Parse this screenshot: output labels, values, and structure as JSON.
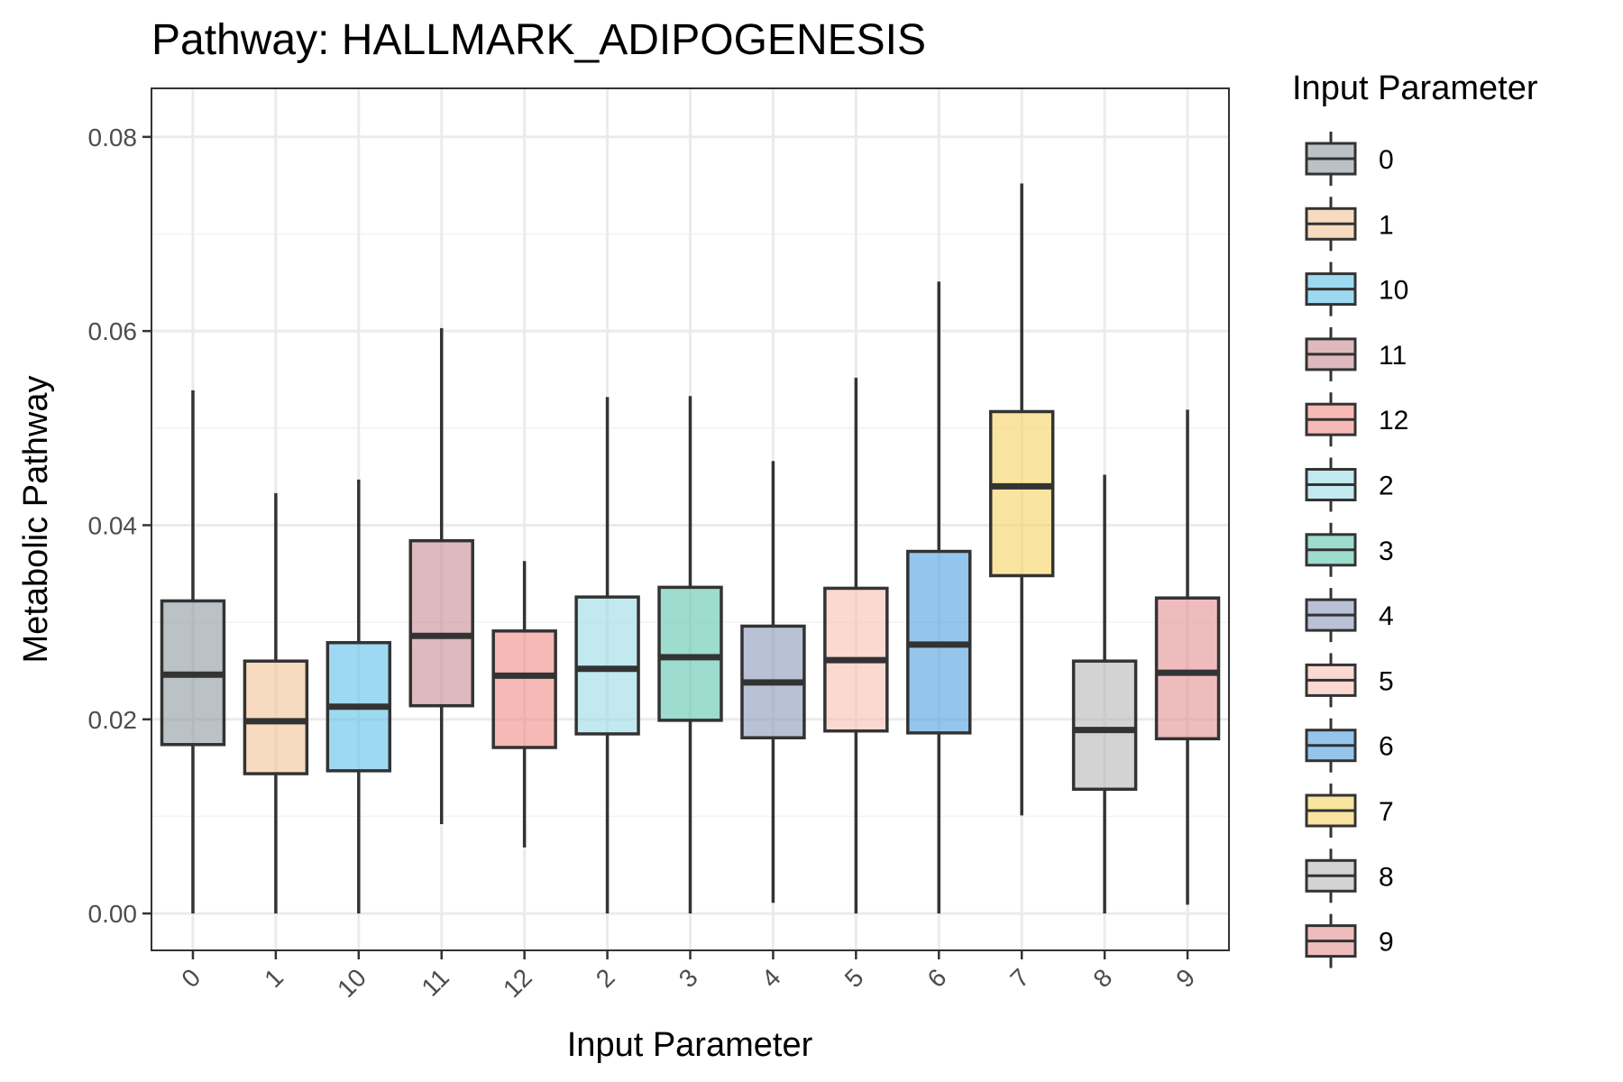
{
  "chart_data": {
    "type": "boxplot",
    "title": "Pathway: HALLMARK_ADIPOGENESIS",
    "xlabel": "Input Parameter",
    "ylabel": "Metabolic Pathway",
    "ylim": [
      -0.0038,
      0.085
    ],
    "y_ticks": [
      "0.00",
      "0.02",
      "0.04",
      "0.06",
      "0.08"
    ],
    "y_tick_values": [
      0,
      0.02,
      0.04,
      0.06,
      0.08
    ],
    "grid": true,
    "legend_title": "Input Parameter",
    "legend_position": "right",
    "boxes": [
      {
        "category": "0",
        "color": "#8C999E",
        "min": 0.0,
        "q1": 0.0174,
        "median": 0.0246,
        "q3": 0.0322,
        "max": 0.0539
      },
      {
        "category": "1",
        "color": "#F2C294",
        "min": 0.0,
        "q1": 0.0144,
        "median": 0.0198,
        "q3": 0.026,
        "max": 0.0433
      },
      {
        "category": "10",
        "color": "#5BC0E8",
        "min": 0.0,
        "q1": 0.0147,
        "median": 0.0213,
        "q3": 0.0279,
        "max": 0.0447
      },
      {
        "category": "11",
        "color": "#C88A92",
        "min": 0.0092,
        "q1": 0.0214,
        "median": 0.0286,
        "q3": 0.0384,
        "max": 0.0603
      },
      {
        "category": "12",
        "color": "#F08A85",
        "min": 0.0068,
        "q1": 0.0171,
        "median": 0.0245,
        "q3": 0.0291,
        "max": 0.0363
      },
      {
        "category": "2",
        "color": "#9AD8E6",
        "min": 0.0,
        "q1": 0.0185,
        "median": 0.0252,
        "q3": 0.0326,
        "max": 0.0532
      },
      {
        "category": "3",
        "color": "#5EC4B0",
        "min": 0.0,
        "q1": 0.0199,
        "median": 0.0264,
        "q3": 0.0336,
        "max": 0.0533
      },
      {
        "category": "4",
        "color": "#8A97BB",
        "min": 0.0011,
        "q1": 0.0181,
        "median": 0.0238,
        "q3": 0.0296,
        "max": 0.0466
      },
      {
        "category": "5",
        "color": "#F8BFB1",
        "min": 0.0,
        "q1": 0.0188,
        "median": 0.0261,
        "q3": 0.0335,
        "max": 0.0552
      },
      {
        "category": "6",
        "color": "#4F9EDE",
        "min": 0.0,
        "q1": 0.0186,
        "median": 0.0277,
        "q3": 0.0373,
        "max": 0.0651
      },
      {
        "category": "7",
        "color": "#F6D461",
        "min": 0.0101,
        "q1": 0.0348,
        "median": 0.044,
        "q3": 0.0517,
        "max": 0.0752
      },
      {
        "category": "8",
        "color": "#B6B6B6",
        "min": 0.0,
        "q1": 0.0128,
        "median": 0.0189,
        "q3": 0.026,
        "max": 0.0452
      },
      {
        "category": "9",
        "color": "#E59092",
        "min": 0.0009,
        "q1": 0.018,
        "median": 0.0248,
        "q3": 0.0325,
        "max": 0.0519
      }
    ]
  }
}
